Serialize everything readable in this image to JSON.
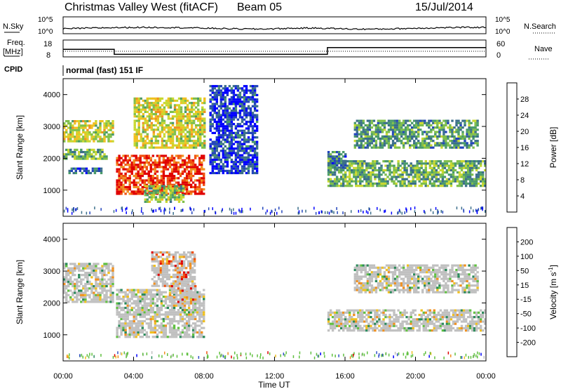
{
  "header": {
    "title": "Christmas Valley West (fitACF)",
    "beam": "Beam 05",
    "date": "15/Jul/2014"
  },
  "top_panels": {
    "nsky_label": "N.Sky",
    "nsky_ticks": [
      "10^5",
      "10^0"
    ],
    "nsearch_label": "N.Search",
    "nsearch_ticks": [
      "10^5",
      "10^0"
    ],
    "freq_label_1": "Freq.",
    "freq_label_2": "[MHz]",
    "freq_ticks": [
      "18",
      "8"
    ],
    "nave_label": "Nave",
    "nave_ticks": [
      "60",
      "0"
    ],
    "cpid_label": "CPID",
    "cpid_text": "normal (fast) 151 IF"
  },
  "chart_data": [
    {
      "type": "heatmap",
      "name": "power",
      "ylabel": "Slant Range [km]",
      "yticks": [
        "4000",
        "3000",
        "2000",
        "1000"
      ],
      "ylim": [
        180,
        4500
      ],
      "colorbar": {
        "label": "Power [dB]",
        "ticks": [
          "28",
          "24",
          "20",
          "16",
          "12",
          "8",
          "4"
        ],
        "colors": [
          "#0000ff",
          "#2244bb",
          "#3a6e8a",
          "#4a9a6a",
          "#7fbf4a",
          "#c8d830",
          "#f0c020",
          "#f09020",
          "#f05010",
          "#e00000"
        ]
      },
      "bands": [
        {
          "t": [
            0.0,
            2.8
          ],
          "r": [
            2500,
            3150
          ],
          "level": 0.55
        },
        {
          "t": [
            0.0,
            2.5
          ],
          "r": [
            1950,
            2300
          ],
          "level": 0.4
        },
        {
          "t": [
            0.3,
            2.2
          ],
          "r": [
            1500,
            1700
          ],
          "level": 0.2
        },
        {
          "t": [
            3.0,
            8.0
          ],
          "r": [
            850,
            2050
          ],
          "level": 0.9
        },
        {
          "t": [
            4.0,
            8.0
          ],
          "r": [
            2300,
            3900
          ],
          "level": 0.55
        },
        {
          "t": [
            4.6,
            6.8
          ],
          "r": [
            600,
            1100
          ],
          "level": 0.45
        },
        {
          "t": [
            8.3,
            11.0
          ],
          "r": [
            1500,
            4300
          ],
          "level": 0.15
        },
        {
          "t": [
            15.0,
            24.0
          ],
          "r": [
            1100,
            1900
          ],
          "level": 0.4
        },
        {
          "t": [
            16.5,
            23.5
          ],
          "r": [
            2300,
            3200
          ],
          "level": 0.35
        },
        {
          "t": [
            15.0,
            16.0
          ],
          "r": [
            1600,
            2200
          ],
          "level": 0.25
        }
      ]
    },
    {
      "type": "heatmap",
      "name": "velocity",
      "ylabel": "Slant Range [km]",
      "yticks": [
        "4000",
        "3000",
        "2000",
        "1000"
      ],
      "ylim": [
        180,
        4500
      ],
      "xlabel": "Time UT",
      "xticks": [
        "00:00",
        "04:00",
        "08:00",
        "12:00",
        "16:00",
        "20:00",
        "00:00"
      ],
      "colorbar": {
        "label": "Velocity [m s",
        "label_sup": "-1",
        "label_end": "]",
        "ticks": [
          "200",
          "100",
          "50",
          "15",
          "-15",
          "-50",
          "-100",
          "-200"
        ],
        "colors": [
          "#0000ff",
          "#3050c8",
          "#2a8a5a",
          "#60c040",
          "#c0c0c0",
          "#f0c020",
          "#f09020",
          "#f05010",
          "#e00000"
        ]
      },
      "bands": [
        {
          "t": [
            0.0,
            2.8
          ],
          "r": [
            2000,
            3200
          ],
          "level": 0.5
        },
        {
          "t": [
            3.0,
            8.0
          ],
          "r": [
            900,
            2400
          ],
          "level": 0.5
        },
        {
          "t": [
            5.0,
            7.5
          ],
          "r": [
            2500,
            3600
          ],
          "level": 0.75
        },
        {
          "t": [
            6.0,
            7.5
          ],
          "r": [
            2000,
            2500
          ],
          "level": 0.85
        },
        {
          "t": [
            15.0,
            24.0
          ],
          "r": [
            1100,
            1800
          ],
          "level": 0.5
        },
        {
          "t": [
            16.5,
            23.5
          ],
          "r": [
            2300,
            3200
          ],
          "level": 0.5
        }
      ]
    }
  ],
  "series_top": {
    "freq_mhz": [
      [
        0,
        12.5
      ],
      [
        2.9,
        12.5
      ],
      [
        2.9,
        9.5
      ],
      [
        15.0,
        9.5
      ],
      [
        15.0,
        13.5
      ],
      [
        24.0,
        13.5
      ]
    ],
    "nave": [
      [
        0,
        20
      ],
      [
        24,
        20
      ]
    ]
  }
}
